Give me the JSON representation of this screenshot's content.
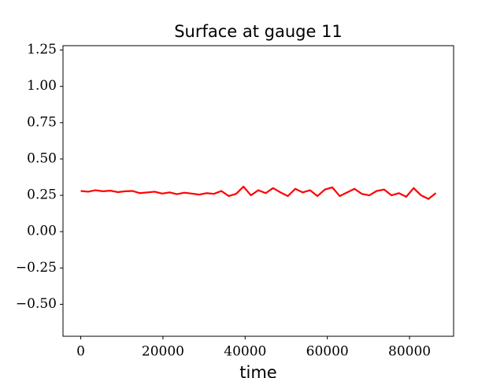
{
  "chart_data": {
    "type": "line",
    "title": "Surface at gauge 11",
    "x_label": "time",
    "x": [
      0,
      1800,
      3600,
      5400,
      7200,
      9000,
      10800,
      12600,
      14400,
      16200,
      18000,
      19800,
      21600,
      23400,
      25200,
      27000,
      28800,
      30600,
      32400,
      34200,
      36000,
      37800,
      39600,
      41400,
      43200,
      45000,
      46800,
      48600,
      50400,
      52200,
      54000,
      55800,
      57600,
      59400,
      61200,
      63000,
      64800,
      66600,
      68400,
      70200,
      72000,
      73800,
      75600,
      77400,
      79200,
      81000,
      82800,
      84600,
      86400
    ],
    "series": [
      {
        "color": "#ff0000",
        "values": [
          0.28,
          0.275,
          0.285,
          0.278,
          0.282,
          0.272,
          0.278,
          0.28,
          0.265,
          0.27,
          0.275,
          0.262,
          0.27,
          0.258,
          0.268,
          0.262,
          0.255,
          0.265,
          0.26,
          0.28,
          0.245,
          0.26,
          0.31,
          0.25,
          0.285,
          0.265,
          0.3,
          0.27,
          0.245,
          0.295,
          0.27,
          0.285,
          0.245,
          0.29,
          0.305,
          0.245,
          0.27,
          0.295,
          0.26,
          0.25,
          0.28,
          0.29,
          0.25,
          0.265,
          0.24,
          0.3,
          0.25,
          0.225,
          0.265
        ]
      }
    ],
    "xlim": [
      -4320,
      90720
    ],
    "ylim": [
      -0.72,
      1.28
    ],
    "xticks": [
      0,
      20000,
      40000,
      60000,
      80000
    ],
    "yticks": [
      {
        "value": -0.5,
        "label": "−0.50"
      },
      {
        "value": -0.25,
        "label": "−0.25"
      },
      {
        "value": 0,
        "label": "0.00"
      },
      {
        "value": 0.25,
        "label": "0.25"
      },
      {
        "value": 0.5,
        "label": "0.50"
      },
      {
        "value": 0.75,
        "label": "0.75"
      },
      {
        "value": 1,
        "label": "1.00"
      },
      {
        "value": 1.25,
        "label": "1.25"
      }
    ]
  }
}
